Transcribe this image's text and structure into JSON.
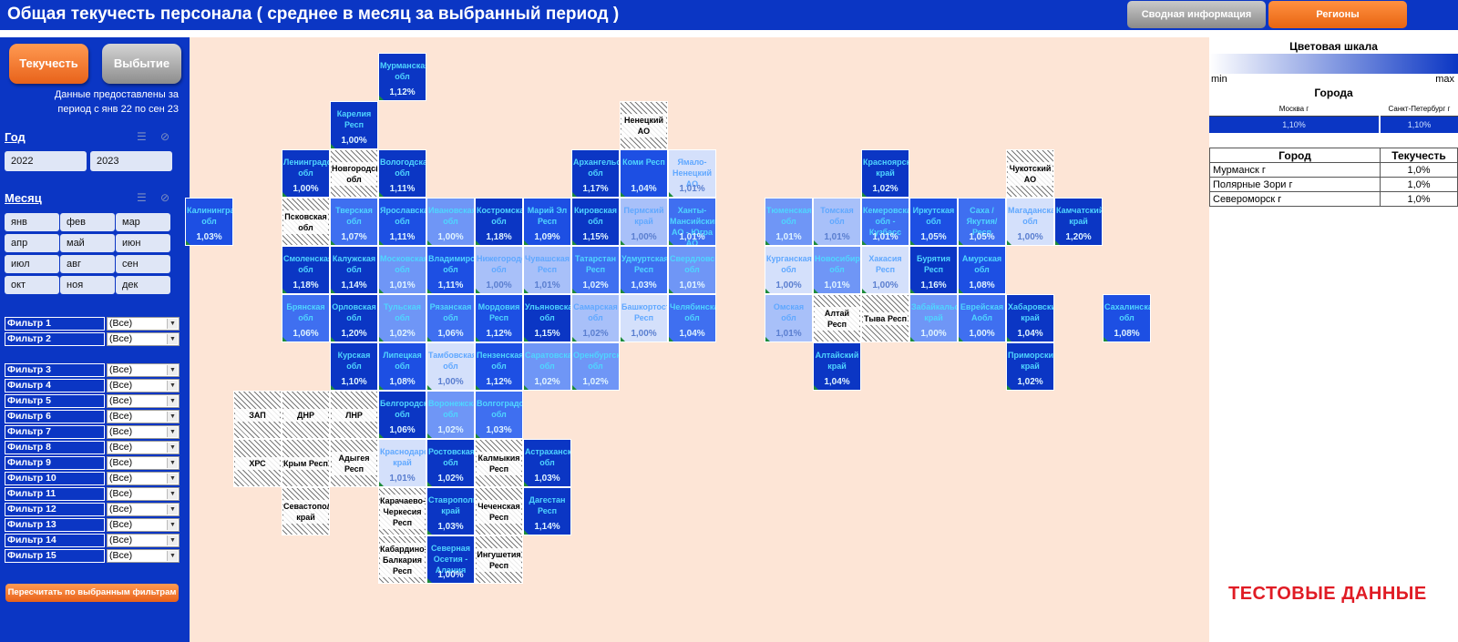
{
  "header": {
    "title": "Общая текучесть персонала ( среднее в месяц за выбранный период )",
    "nav_summary": "Сводная информация",
    "nav_regions": "Регионы"
  },
  "sidebar": {
    "btn_turnover": "Текучесть",
    "btn_attrition": "Выбытие",
    "period_line1": "Данные предоставлены за",
    "period_line2": "период с янв 22 по сен 23",
    "year_label": "Год",
    "years": [
      "2022",
      "2023"
    ],
    "month_label": "Месяц",
    "months": [
      "янв",
      "фев",
      "мар",
      "апр",
      "май",
      "июн",
      "июл",
      "авг",
      "сен",
      "окт",
      "ноя",
      "дек"
    ],
    "filters": [
      {
        "label": "Фильтр 1",
        "value": "(Все)"
      },
      {
        "label": "Фильтр 2",
        "value": "(Все)"
      },
      {
        "label": "Фильтр 3",
        "value": "(Все)"
      },
      {
        "label": "Фильтр 4",
        "value": "(Все)"
      },
      {
        "label": "Фильтр 5",
        "value": "(Все)"
      },
      {
        "label": "Фильтр 6",
        "value": "(Все)"
      },
      {
        "label": "Фильтр 7",
        "value": "(Все)"
      },
      {
        "label": "Фильтр 8",
        "value": "(Все)"
      },
      {
        "label": "Фильтр 9",
        "value": "(Все)"
      },
      {
        "label": "Фильтр 10",
        "value": "(Все)"
      },
      {
        "label": "Фильтр 11",
        "value": "(Все)"
      },
      {
        "label": "Фильтр 12",
        "value": "(Все)"
      },
      {
        "label": "Фильтр 13",
        "value": "(Все)"
      },
      {
        "label": "Фильтр 14",
        "value": "(Все)"
      },
      {
        "label": "Фильтр 15",
        "value": "(Все)"
      }
    ],
    "recalc_btn": "Пересчитать по выбранным фильтрам"
  },
  "regions": [
    {
      "name": "Мурманская обл",
      "value": "1,12%",
      "col": 4,
      "row": 0,
      "level": 1
    },
    {
      "name": "Карелия Респ",
      "value": "1,00%",
      "col": 3,
      "row": 1,
      "level": 1
    },
    {
      "name": "Ненецкий АО",
      "value": "",
      "col": 9,
      "row": 1,
      "level": 0
    },
    {
      "name": "Ленинградская обл",
      "value": "1,00%",
      "col": 2,
      "row": 2,
      "level": 1
    },
    {
      "name": "Новгородская обл",
      "value": "",
      "col": 3,
      "row": 2,
      "level": 0
    },
    {
      "name": "Вологодская обл",
      "value": "1,11%",
      "col": 4,
      "row": 2,
      "level": 1
    },
    {
      "name": "Архангельская обл",
      "value": "1,17%",
      "col": 8,
      "row": 2,
      "level": 1
    },
    {
      "name": "Коми Респ",
      "value": "1,04%",
      "col": 9,
      "row": 2,
      "level": 2
    },
    {
      "name": "Ямало-Ненецкий АО",
      "value": "1,01%",
      "col": 10,
      "row": 2,
      "level": 6
    },
    {
      "name": "Красноярский край",
      "value": "1,02%",
      "col": 14,
      "row": 2,
      "level": 1
    },
    {
      "name": "Чукотский АО",
      "value": "",
      "col": 17,
      "row": 2,
      "level": 0
    },
    {
      "name": "Калининградская обл",
      "value": "1,03%",
      "col": 0,
      "row": 3,
      "level": 2
    },
    {
      "name": "Псковская обл",
      "value": "",
      "col": 2,
      "row": 3,
      "level": 0
    },
    {
      "name": "Тверская обл",
      "value": "1,07%",
      "col": 3,
      "row": 3,
      "level": 3
    },
    {
      "name": "Ярославская обл",
      "value": "1,11%",
      "col": 4,
      "row": 3,
      "level": 2
    },
    {
      "name": "Ивановская обл",
      "value": "1,00%",
      "col": 5,
      "row": 3,
      "level": 4
    },
    {
      "name": "Костромская обл",
      "value": "1,18%",
      "col": 6,
      "row": 3,
      "level": 1
    },
    {
      "name": "Марий Эл Респ",
      "value": "1,09%",
      "col": 7,
      "row": 3,
      "level": 2
    },
    {
      "name": "Кировская обл",
      "value": "1,15%",
      "col": 8,
      "row": 3,
      "level": 1
    },
    {
      "name": "Пермский край",
      "value": "1,00%",
      "col": 9,
      "row": 3,
      "level": 5
    },
    {
      "name": "Ханты-Мансийский АО - Югра АО",
      "value": "1,01%",
      "col": 10,
      "row": 3,
      "level": 3
    },
    {
      "name": "Тюменская обл",
      "value": "1,01%",
      "col": 12,
      "row": 3,
      "level": 4
    },
    {
      "name": "Томская обл",
      "value": "1,01%",
      "col": 13,
      "row": 3,
      "level": 5
    },
    {
      "name": "Кемеровская обл - Кузбасс",
      "value": "1,01%",
      "col": 14,
      "row": 3,
      "level": 3
    },
    {
      "name": "Иркутская обл",
      "value": "1,05%",
      "col": 15,
      "row": 3,
      "level": 2
    },
    {
      "name": "Саха /Якутия/ Респ",
      "value": "1,05%",
      "col": 16,
      "row": 3,
      "level": 3
    },
    {
      "name": "Магаданская обл",
      "value": "1,00%",
      "col": 17,
      "row": 3,
      "level": 6
    },
    {
      "name": "Камчатский край",
      "value": "1,20%",
      "col": 18,
      "row": 3,
      "level": 1
    },
    {
      "name": "Смоленская обл",
      "value": "1,18%",
      "col": 2,
      "row": 4,
      "level": 1
    },
    {
      "name": "Калужская обл",
      "value": "1,14%",
      "col": 3,
      "row": 4,
      "level": 1
    },
    {
      "name": "Московская обл",
      "value": "1,01%",
      "col": 4,
      "row": 4,
      "level": 4
    },
    {
      "name": "Владимирская обл",
      "value": "1,11%",
      "col": 5,
      "row": 4,
      "level": 2
    },
    {
      "name": "Нижегородская обл",
      "value": "1,00%",
      "col": 6,
      "row": 4,
      "level": 5
    },
    {
      "name": "Чувашская Респ",
      "value": "1,01%",
      "col": 7,
      "row": 4,
      "level": 5
    },
    {
      "name": "Татарстан Респ",
      "value": "1,02%",
      "col": 8,
      "row": 4,
      "level": 3
    },
    {
      "name": "Удмуртская Респ",
      "value": "1,03%",
      "col": 9,
      "row": 4,
      "level": 3
    },
    {
      "name": "Свердловская обл",
      "value": "1,01%",
      "col": 10,
      "row": 4,
      "level": 4
    },
    {
      "name": "Курганская обл",
      "value": "1,00%",
      "col": 12,
      "row": 4,
      "level": 6
    },
    {
      "name": "Новосибирская обл",
      "value": "1,01%",
      "col": 13,
      "row": 4,
      "level": 4
    },
    {
      "name": "Хакасия Респ",
      "value": "1,00%",
      "col": 14,
      "row": 4,
      "level": 6
    },
    {
      "name": "Бурятия Респ",
      "value": "1,16%",
      "col": 15,
      "row": 4,
      "level": 1
    },
    {
      "name": "Амурская обл",
      "value": "1,08%",
      "col": 16,
      "row": 4,
      "level": 2
    },
    {
      "name": "Брянская обл",
      "value": "1,06%",
      "col": 2,
      "row": 5,
      "level": 3
    },
    {
      "name": "Орловская обл",
      "value": "1,20%",
      "col": 3,
      "row": 5,
      "level": 1
    },
    {
      "name": "Тульская обл",
      "value": "1,02%",
      "col": 4,
      "row": 5,
      "level": 4
    },
    {
      "name": "Рязанская обл",
      "value": "1,06%",
      "col": 5,
      "row": 5,
      "level": 3
    },
    {
      "name": "Мордовия Респ",
      "value": "1,12%",
      "col": 6,
      "row": 5,
      "level": 2
    },
    {
      "name": "Ульяновская обл",
      "value": "1,15%",
      "col": 7,
      "row": 5,
      "level": 1
    },
    {
      "name": "Самарская обл",
      "value": "1,02%",
      "col": 8,
      "row": 5,
      "level": 5
    },
    {
      "name": "Башкортостан Респ",
      "value": "1,00%",
      "col": 9,
      "row": 5,
      "level": 6
    },
    {
      "name": "Челябинская обл",
      "value": "1,04%",
      "col": 10,
      "row": 5,
      "level": 3
    },
    {
      "name": "Омская обл",
      "value": "1,01%",
      "col": 12,
      "row": 5,
      "level": 5
    },
    {
      "name": "Алтай Респ",
      "value": "",
      "col": 13,
      "row": 5,
      "level": 0
    },
    {
      "name": "Тыва Респ",
      "value": "",
      "col": 14,
      "row": 5,
      "level": 0
    },
    {
      "name": "Забайкальский край",
      "value": "1,00%",
      "col": 15,
      "row": 5,
      "level": 4
    },
    {
      "name": "Еврейская Аобл",
      "value": "1,00%",
      "col": 16,
      "row": 5,
      "level": 3
    },
    {
      "name": "Хабаровский край",
      "value": "1,04%",
      "col": 17,
      "row": 5,
      "level": 1
    },
    {
      "name": "Сахалинская обл",
      "value": "1,08%",
      "col": 19,
      "row": 5,
      "level": 2
    },
    {
      "name": "Курская обл",
      "value": "1,10%",
      "col": 3,
      "row": 6,
      "level": 1
    },
    {
      "name": "Липецкая обл",
      "value": "1,08%",
      "col": 4,
      "row": 6,
      "level": 2
    },
    {
      "name": "Тамбовская обл",
      "value": "1,00%",
      "col": 5,
      "row": 6,
      "level": 6
    },
    {
      "name": "Пензенская обл",
      "value": "1,12%",
      "col": 6,
      "row": 6,
      "level": 2
    },
    {
      "name": "Саратовская обл",
      "value": "1,02%",
      "col": 7,
      "row": 6,
      "level": 4
    },
    {
      "name": "Оренбургская обл",
      "value": "1,02%",
      "col": 8,
      "row": 6,
      "level": 4
    },
    {
      "name": "Алтайский край",
      "value": "1,04%",
      "col": 13,
      "row": 6,
      "level": 1
    },
    {
      "name": "Приморский край",
      "value": "1,02%",
      "col": 17,
      "row": 6,
      "level": 1
    },
    {
      "name": "ЗАП",
      "value": "",
      "col": 1,
      "row": 7,
      "level": 0
    },
    {
      "name": "ДНР",
      "value": "",
      "col": 2,
      "row": 7,
      "level": 0
    },
    {
      "name": "ЛНР",
      "value": "",
      "col": 3,
      "row": 7,
      "level": 0
    },
    {
      "name": "Белгородская обл",
      "value": "1,06%",
      "col": 4,
      "row": 7,
      "level": 1
    },
    {
      "name": "Воронежская обл",
      "value": "1,02%",
      "col": 5,
      "row": 7,
      "level": 4
    },
    {
      "name": "Волгоградская обл",
      "value": "1,03%",
      "col": 6,
      "row": 7,
      "level": 3
    },
    {
      "name": "ХРС",
      "value": "",
      "col": 1,
      "row": 8,
      "level": 0
    },
    {
      "name": "Крым Респ",
      "value": "",
      "col": 2,
      "row": 8,
      "level": 0
    },
    {
      "name": "Адыгея Респ",
      "value": "",
      "col": 3,
      "row": 8,
      "level": 0
    },
    {
      "name": "Краснодарский край",
      "value": "1,01%",
      "col": 4,
      "row": 8,
      "level": 6
    },
    {
      "name": "Ростовская обл",
      "value": "1,02%",
      "col": 5,
      "row": 8,
      "level": 1
    },
    {
      "name": "Калмыкия Респ",
      "value": "",
      "col": 6,
      "row": 8,
      "level": 0
    },
    {
      "name": "Астраханская обл",
      "value": "1,03%",
      "col": 7,
      "row": 8,
      "level": 1
    },
    {
      "name": "Севастопольский край",
      "value": "",
      "col": 2,
      "row": 9,
      "level": 0
    },
    {
      "name": "Карачаево-Черкесия Респ",
      "value": "",
      "col": 4,
      "row": 9,
      "level": 0
    },
    {
      "name": "Ставропольский край",
      "value": "1,03%",
      "col": 5,
      "row": 9,
      "level": 1
    },
    {
      "name": "Чеченская Респ",
      "value": "",
      "col": 6,
      "row": 9,
      "level": 0
    },
    {
      "name": "Дагестан Респ",
      "value": "1,14%",
      "col": 7,
      "row": 9,
      "level": 1
    },
    {
      "name": "Кабардино-Балкария Респ",
      "value": "",
      "col": 4,
      "row": 10,
      "level": 0
    },
    {
      "name": "Северная Осетия - Алания",
      "value": "1,00%",
      "col": 5,
      "row": 10,
      "level": 1
    },
    {
      "name": "Ингушетия Респ",
      "value": "",
      "col": 6,
      "row": 10,
      "level": 0
    }
  ],
  "right_panel": {
    "scale_title": "Цветовая шкала",
    "scale_min": "min",
    "scale_max": "max",
    "cities_title": "Города",
    "city1_name": "Москва г",
    "city1_value": "1,10%",
    "city2_name": "Санкт-Петербург г",
    "city2_value": "1,10%",
    "table_header_city": "Город",
    "table_header_value": "Текучесть",
    "table_rows": [
      {
        "city": "Мурманск г",
        "value": "1,0%"
      },
      {
        "city": "Полярные Зори г",
        "value": "1,0%"
      },
      {
        "city": "Североморск г",
        "value": "1,0%"
      }
    ],
    "test_data_label": "ТЕСТОВЫЕ ДАННЫЕ"
  }
}
